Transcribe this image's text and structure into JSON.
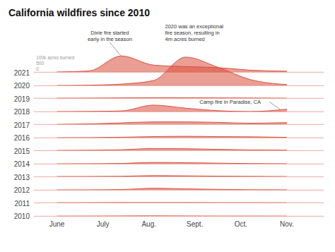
{
  "chart_data": {
    "type": "ridgeline",
    "title": "California wildfires since 2010",
    "x": [
      0.0,
      0.7,
      1.4,
      2.1,
      2.8,
      3.5,
      4.2,
      5.0
    ],
    "xlim": [
      -0.5,
      5.8
    ],
    "xticks": [
      {
        "value": 0,
        "label": "June"
      },
      {
        "value": 1,
        "label": "July"
      },
      {
        "value": 2,
        "label": "Aug."
      },
      {
        "value": 3,
        "label": "Sept."
      },
      {
        "value": 4,
        "label": "Oct."
      },
      {
        "value": 5,
        "label": "Nov."
      }
    ],
    "ylim": [
      0,
      3
    ],
    "tick_labels": "x",
    "color": "#d94f3d",
    "series": [
      {
        "name": "2021",
        "values": [
          0.02,
          0.12,
          1.6,
          0.7,
          0.55,
          0.45,
          0.2,
          0.1
        ]
      },
      {
        "name": "2020",
        "values": [
          0.01,
          0.04,
          0.15,
          0.5,
          2.8,
          1.8,
          0.6,
          0.1
        ]
      },
      {
        "name": "2019",
        "values": [
          0.01,
          0.02,
          0.04,
          0.05,
          0.05,
          0.04,
          0.03,
          0.01
        ]
      },
      {
        "name": "2018",
        "values": [
          0.01,
          0.03,
          0.08,
          0.65,
          0.35,
          0.1,
          0.02,
          0.25
        ]
      },
      {
        "name": "2017",
        "values": [
          0.01,
          0.05,
          0.15,
          0.25,
          0.25,
          0.2,
          0.12,
          0.18
        ]
      },
      {
        "name": "2016",
        "values": [
          0.01,
          0.02,
          0.06,
          0.12,
          0.15,
          0.12,
          0.1,
          0.05
        ]
      },
      {
        "name": "2015",
        "values": [
          0.01,
          0.03,
          0.08,
          0.2,
          0.18,
          0.12,
          0.06,
          0.04
        ]
      },
      {
        "name": "2014",
        "values": [
          0.01,
          0.02,
          0.05,
          0.15,
          0.12,
          0.08,
          0.04,
          0.02
        ]
      },
      {
        "name": "2013",
        "values": [
          0.01,
          0.02,
          0.04,
          0.1,
          0.08,
          0.05,
          0.03,
          0.01
        ]
      },
      {
        "name": "2012",
        "values": [
          0.01,
          0.02,
          0.05,
          0.18,
          0.12,
          0.07,
          0.03,
          0.02
        ]
      },
      {
        "name": "2011",
        "values": [
          0.005,
          0.01,
          0.02,
          0.02,
          0.02,
          0.01,
          0.01,
          0.005
        ]
      },
      {
        "name": "2010",
        "values": [
          0.005,
          0.01,
          0.02,
          0.03,
          0.02,
          0.01,
          0.01,
          0.005
        ]
      }
    ],
    "annotations": [
      "100k acres burned",
      "500",
      "0",
      "Dixie fire started\nearly in the season",
      "2020 was an exceptional\nfire season, resulting in\n4m acres burned",
      "Camp fire in Paradise, CA"
    ]
  }
}
